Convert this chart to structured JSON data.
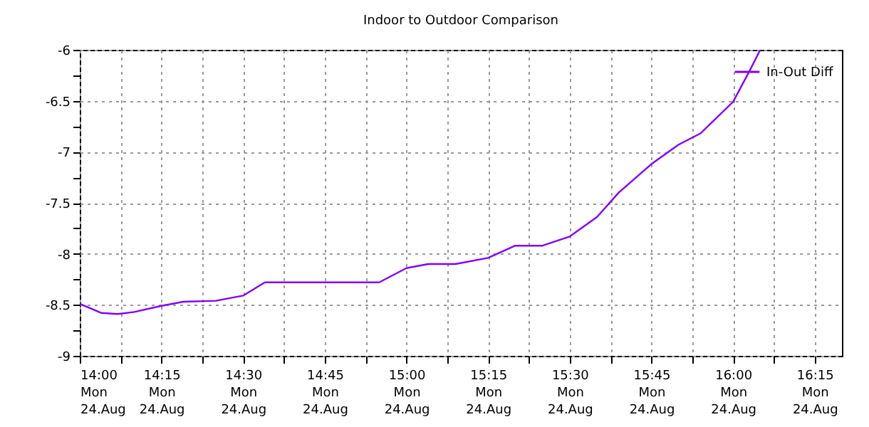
{
  "chart_data": {
    "type": "line",
    "title": "Indoor to Outdoor Comparison",
    "x": [
      "--08-24T14:00",
      "--08-24T14:04",
      "--08-24T14:07",
      "--08-24T14:10",
      "--08-24T14:15",
      "--08-24T14:19",
      "--08-24T14:25",
      "--08-24T14:30",
      "--08-24T14:34",
      "--08-24T14:55",
      "--08-24T15:00",
      "--08-24T15:04",
      "--08-24T15:09",
      "--08-24T15:15",
      "--08-24T15:20",
      "--08-24T15:25",
      "--08-24T15:30",
      "--08-24T15:35",
      "--08-24T15:39",
      "--08-24T15:45",
      "--08-24T15:50",
      "--08-24T15:54",
      "--08-24T16:00",
      "--08-24T16:03",
      "--08-24T16:05"
    ],
    "series": [
      {
        "name": "In-Out Diff",
        "color": "#8000ff",
        "values": [
          -8.49,
          -8.58,
          -8.59,
          -8.57,
          -8.51,
          -8.47,
          -8.46,
          -8.41,
          -8.28,
          -8.28,
          -8.14,
          -8.1,
          -8.1,
          -8.04,
          -7.92,
          -7.92,
          -7.83,
          -7.64,
          -7.4,
          -7.12,
          -6.93,
          -6.82,
          -6.51,
          -6.21,
          -6.0
        ]
      }
    ],
    "xlim": [
      "--08-24T14:00",
      "--08-24T16:20"
    ],
    "xticks": [
      {
        "value": "--08-24T14:00",
        "label": "14:00\nMon\n24.Aug"
      },
      {
        "value": "--08-24T14:07:30",
        "label": null
      },
      {
        "value": "--08-24T14:15",
        "label": "14:15\nMon\n24.Aug"
      },
      {
        "value": "--08-24T14:22:30",
        "label": null
      },
      {
        "value": "--08-24T14:30",
        "label": "14:30\nMon\n24.Aug"
      },
      {
        "value": "--08-24T14:37:30",
        "label": null
      },
      {
        "value": "--08-24T14:45",
        "label": "14:45\nMon\n24.Aug"
      },
      {
        "value": "--08-24T14:52:30",
        "label": null
      },
      {
        "value": "--08-24T15:00",
        "label": "15:00\nMon\n24.Aug"
      },
      {
        "value": "--08-24T15:07:30",
        "label": null
      },
      {
        "value": "--08-24T15:15",
        "label": "15:15\nMon\n24.Aug"
      },
      {
        "value": "--08-24T15:22:30",
        "label": null
      },
      {
        "value": "--08-24T15:30",
        "label": "15:30\nMon\n24.Aug"
      },
      {
        "value": "--08-24T15:37:30",
        "label": null
      },
      {
        "value": "--08-24T15:45",
        "label": "15:45\nMon\n24.Aug"
      },
      {
        "value": "--08-24T15:52:30",
        "label": null
      },
      {
        "value": "--08-24T16:00",
        "label": "16:00\nMon\n24.Aug"
      },
      {
        "value": "--08-24T16:07:30",
        "label": null
      },
      {
        "value": "--08-24T16:15",
        "label": "16:15\nMon\n24.Aug"
      }
    ],
    "ylim": [
      -9,
      -6
    ],
    "yticks": [
      -9,
      {
        "value": -8.75,
        "label": null
      },
      -8.5,
      {
        "value": -8.25,
        "label": null
      },
      -8,
      {
        "value": -7.75,
        "label": null
      },
      -7.5,
      {
        "value": -7.25,
        "label": null
      },
      -7,
      {
        "value": -6.75,
        "label": null
      },
      -6.5,
      {
        "value": -6.25,
        "label": null
      },
      -6
    ],
    "grid": true,
    "legend": "top right",
    "marker": "none",
    "line_style": "solid"
  }
}
